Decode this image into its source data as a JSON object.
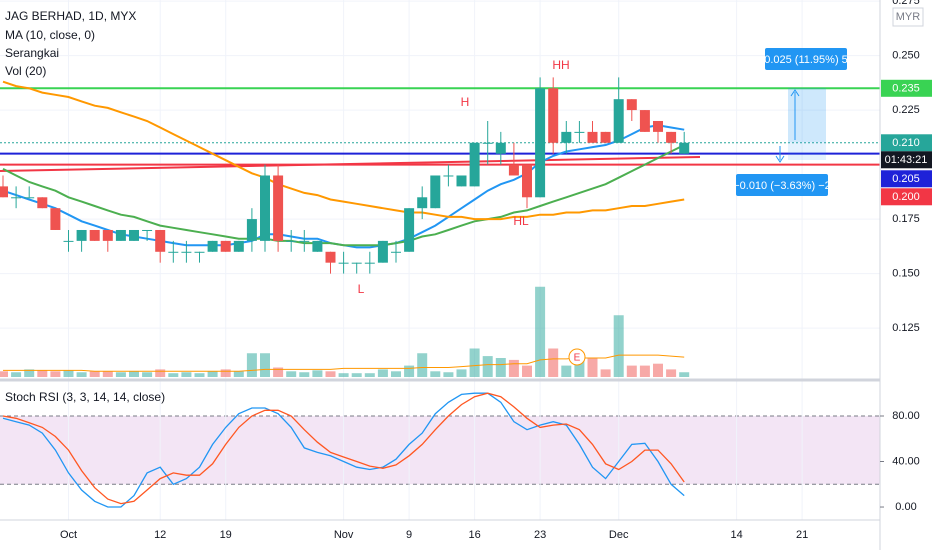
{
  "chart_data": [
    {
      "type": "candlestick",
      "title": "JAG BERHAD, 1D, MYX",
      "indicators": [
        "MA (10, close, 0)",
        "Serangkai",
        "Vol (20)"
      ],
      "currency": "MYR",
      "categories": [
        null,
        null,
        null,
        null,
        null,
        "Oct",
        null,
        null,
        null,
        null,
        null,
        null,
        "12",
        null,
        null,
        null,
        null,
        "19",
        null,
        null,
        null,
        null,
        null,
        null,
        null,
        null,
        "Nov",
        null,
        null,
        null,
        null,
        "9",
        null,
        null,
        null,
        null,
        "16",
        null,
        null,
        null,
        null,
        "23",
        null,
        null,
        null,
        null,
        null,
        "Dec",
        null,
        null,
        null,
        null,
        null,
        null,
        null,
        null,
        "14",
        null,
        null,
        null,
        null,
        "21"
      ],
      "open": [
        0.19,
        0.185,
        0.185,
        0.185,
        0.18,
        0.165,
        0.165,
        0.17,
        0.17,
        0.165,
        0.165,
        0.17,
        0.17,
        0.16,
        0.16,
        0.16,
        0.16,
        0.165,
        0.16,
        0.165,
        0.165,
        0.195,
        0.165,
        0.165,
        0.16,
        0.16,
        0.155,
        0.155,
        0.155,
        0.155,
        0.16,
        0.16,
        0.18,
        0.18,
        0.195,
        0.19,
        0.19,
        0.21,
        0.205,
        0.2,
        0.2,
        0.185,
        0.235,
        0.21,
        0.215,
        0.215,
        0.215,
        0.21,
        0.23,
        0.225,
        0.22,
        0.215,
        0.205,
        null,
        null,
        null,
        null,
        null,
        null,
        null,
        null,
        null
      ],
      "high": [
        0.195,
        0.19,
        0.19,
        0.185,
        0.18,
        0.17,
        0.17,
        0.17,
        0.17,
        0.17,
        0.17,
        0.17,
        0.17,
        0.165,
        0.165,
        0.16,
        0.165,
        0.165,
        0.165,
        0.18,
        0.2,
        0.2,
        0.17,
        0.17,
        0.165,
        0.16,
        0.16,
        0.155,
        0.16,
        0.165,
        0.165,
        0.18,
        0.19,
        0.195,
        0.2,
        0.195,
        0.21,
        0.22,
        0.215,
        0.21,
        0.2,
        0.24,
        0.24,
        0.22,
        0.22,
        0.22,
        0.215,
        0.24,
        0.23,
        0.225,
        0.22,
        0.215,
        0.215,
        null,
        null,
        null,
        null,
        null,
        null,
        null,
        null,
        null
      ],
      "low": [
        0.185,
        0.18,
        0.185,
        0.18,
        0.17,
        0.16,
        0.16,
        0.165,
        0.16,
        0.165,
        0.165,
        0.165,
        0.155,
        0.155,
        0.155,
        0.155,
        0.16,
        0.16,
        0.16,
        0.16,
        0.16,
        0.16,
        0.16,
        0.16,
        0.16,
        0.15,
        0.15,
        0.15,
        0.15,
        0.155,
        0.155,
        0.16,
        0.175,
        0.18,
        0.19,
        0.19,
        0.19,
        0.2,
        0.2,
        0.195,
        0.18,
        0.185,
        0.205,
        0.205,
        0.21,
        0.21,
        0.21,
        0.21,
        0.22,
        0.215,
        0.21,
        0.205,
        0.205,
        null,
        null,
        null,
        null,
        null,
        null,
        null,
        null,
        null
      ],
      "close": [
        0.185,
        0.185,
        0.185,
        0.18,
        0.17,
        0.165,
        0.17,
        0.165,
        0.165,
        0.17,
        0.17,
        0.17,
        0.16,
        0.16,
        0.16,
        0.16,
        0.165,
        0.16,
        0.165,
        0.175,
        0.195,
        0.165,
        0.165,
        0.165,
        0.165,
        0.155,
        0.155,
        0.155,
        0.155,
        0.165,
        0.16,
        0.18,
        0.185,
        0.195,
        0.195,
        0.195,
        0.21,
        0.21,
        0.21,
        0.195,
        0.185,
        0.235,
        0.21,
        0.215,
        0.215,
        0.21,
        0.21,
        0.23,
        0.225,
        0.215,
        0.215,
        0.21,
        0.21,
        null,
        null,
        null,
        null,
        null,
        null,
        null,
        null,
        null
      ],
      "up_color": "#26a69a",
      "down_color": "#ef5350",
      "ylim": [
        0.1021,
        0.2755
      ],
      "yticks": [
        {
          "value": 0.275,
          "label": "0.275"
        },
        {
          "value": 0.25,
          "label": "0.250"
        },
        {
          "value": 0.225,
          "label": "0.225"
        },
        {
          "value": 0.175,
          "label": "0.175"
        },
        {
          "value": 0.15,
          "label": "0.150"
        },
        {
          "value": 0.125,
          "label": "0.125"
        }
      ],
      "grid": true,
      "lines": [
        {
          "color": "#2196f3",
          "values": [
            0.188,
            0.186,
            0.184,
            0.182,
            0.18,
            0.177,
            0.174,
            0.172,
            0.17,
            0.168,
            0.167,
            0.166,
            0.165,
            0.164,
            0.163,
            0.163,
            0.163,
            0.163,
            0.164,
            0.165,
            0.168,
            0.168,
            0.167,
            0.166,
            0.166,
            0.164,
            0.163,
            0.162,
            0.162,
            0.163,
            0.164,
            0.166,
            0.169,
            0.172,
            0.176,
            0.18,
            0.184,
            0.188,
            0.191,
            0.193,
            0.196,
            0.201,
            0.204,
            0.206,
            0.207,
            0.208,
            0.209,
            0.211,
            0.214,
            0.217,
            0.218,
            0.217,
            0.216,
            null,
            null,
            null,
            null,
            null,
            null,
            null,
            null,
            null
          ]
        },
        {
          "color": "#4caf50",
          "values": [
            0.198,
            0.195,
            0.192,
            0.19,
            0.188,
            0.185,
            0.183,
            0.181,
            0.179,
            0.177,
            0.176,
            0.174,
            0.172,
            0.171,
            0.17,
            0.169,
            0.168,
            0.167,
            0.166,
            0.166,
            0.166,
            0.165,
            0.165,
            0.164,
            0.164,
            0.164,
            0.163,
            0.163,
            0.163,
            0.163,
            0.164,
            0.165,
            0.167,
            0.168,
            0.17,
            0.172,
            0.174,
            0.175,
            0.176,
            0.178,
            0.179,
            0.181,
            0.183,
            0.185,
            0.187,
            0.189,
            0.191,
            0.194,
            0.197,
            0.2,
            0.203,
            0.206,
            0.209,
            null,
            null,
            null,
            null,
            null,
            null,
            null,
            null,
            null
          ]
        },
        {
          "color": "#ff9800",
          "values": [
            0.238,
            0.236,
            0.235,
            0.233,
            0.232,
            0.231,
            0.229,
            0.227,
            0.226,
            0.224,
            0.222,
            0.22,
            0.217,
            0.214,
            0.211,
            0.208,
            0.205,
            0.202,
            0.199,
            0.196,
            0.194,
            0.191,
            0.189,
            0.187,
            0.186,
            0.184,
            0.183,
            0.182,
            0.181,
            0.18,
            0.179,
            0.178,
            0.178,
            0.177,
            0.176,
            0.176,
            0.175,
            0.175,
            0.175,
            0.176,
            0.176,
            0.177,
            0.177,
            0.178,
            0.178,
            0.179,
            0.179,
            0.18,
            0.181,
            0.181,
            0.182,
            0.183,
            0.184,
            null,
            null,
            null,
            null,
            null,
            null,
            null,
            null,
            null
          ]
        }
      ],
      "price_labels": [
        {
          "value": 0.235,
          "label": "0.235",
          "color": "#39d353",
          "line": "solid"
        },
        {
          "value": 0.21,
          "label": "0.210",
          "color": "#26a69a",
          "line": "dotted",
          "countdown": "01:43:21"
        },
        {
          "value": 0.205,
          "label": "0.205",
          "color": "#1e22d8",
          "line": "solid"
        },
        {
          "value": 0.2,
          "label": "0.200",
          "color": "#f23645",
          "line": "solid"
        }
      ],
      "annotations": [
        "H",
        "HH",
        "HL",
        "L"
      ],
      "event": "E",
      "position_labels": [
        "0.025 (11.95%) 5",
        "−0.010 (−3.63%) −2"
      ]
    },
    {
      "type": "bar",
      "values": [
        6,
        5,
        8,
        7,
        6,
        7,
        5,
        6,
        6,
        5,
        6,
        5,
        8,
        4,
        5,
        4,
        6,
        8,
        6,
        25,
        25,
        10,
        6,
        5,
        7,
        6,
        4,
        4,
        4,
        8,
        6,
        12,
        25,
        6,
        5,
        8,
        30,
        22,
        20,
        18,
        12,
        95,
        30,
        12,
        20,
        20,
        8,
        65,
        12,
        12,
        14,
        8,
        5
      ],
      "ylim": [
        0,
        100
      ],
      "ma": {
        "color": "#ff9800",
        "values": [
          7,
          7,
          7,
          7,
          7,
          7,
          7,
          6,
          6,
          6,
          6,
          6,
          6,
          6,
          6,
          6,
          6,
          6,
          6,
          7,
          8,
          8,
          8,
          8,
          8,
          8,
          9,
          9,
          9,
          9,
          9,
          9,
          10,
          10,
          10,
          11,
          12,
          13,
          13,
          14,
          14,
          18,
          19,
          19,
          20,
          20,
          20,
          23,
          23,
          23,
          23,
          22,
          21
        ]
      }
    },
    {
      "type": "line",
      "title": "Stoch RSI (3, 3, 14, 14, close)",
      "series": [
        {
          "color": "#2196f3",
          "values": [
            78,
            75,
            72,
            65,
            50,
            30,
            15,
            5,
            0,
            0,
            10,
            30,
            35,
            20,
            25,
            35,
            55,
            70,
            82,
            87,
            87,
            82,
            70,
            52,
            48,
            45,
            40,
            35,
            33,
            35,
            42,
            55,
            65,
            82,
            92,
            99,
            100,
            100,
            92,
            75,
            68,
            72,
            75,
            72,
            55,
            35,
            25,
            40,
            55,
            56,
            40,
            20,
            10
          ]
        },
        {
          "color": "#ff5722",
          "values": [
            80,
            78,
            74,
            70,
            62,
            50,
            32,
            17,
            7,
            3,
            5,
            15,
            25,
            30,
            28,
            28,
            38,
            55,
            70,
            80,
            85,
            85,
            80,
            68,
            57,
            48,
            44,
            40,
            36,
            34,
            37,
            45,
            55,
            68,
            80,
            90,
            97,
            100,
            97,
            88,
            78,
            70,
            72,
            73,
            68,
            55,
            38,
            33,
            40,
            50,
            50,
            38,
            22
          ]
        }
      ],
      "ylim": [
        -11.4,
        109
      ],
      "yticks": [
        {
          "value": 80,
          "label": "80.00"
        },
        {
          "value": 40,
          "label": "40.00"
        },
        {
          "value": 0,
          "label": "0.00"
        }
      ],
      "band": [
        20,
        80
      ]
    }
  ]
}
